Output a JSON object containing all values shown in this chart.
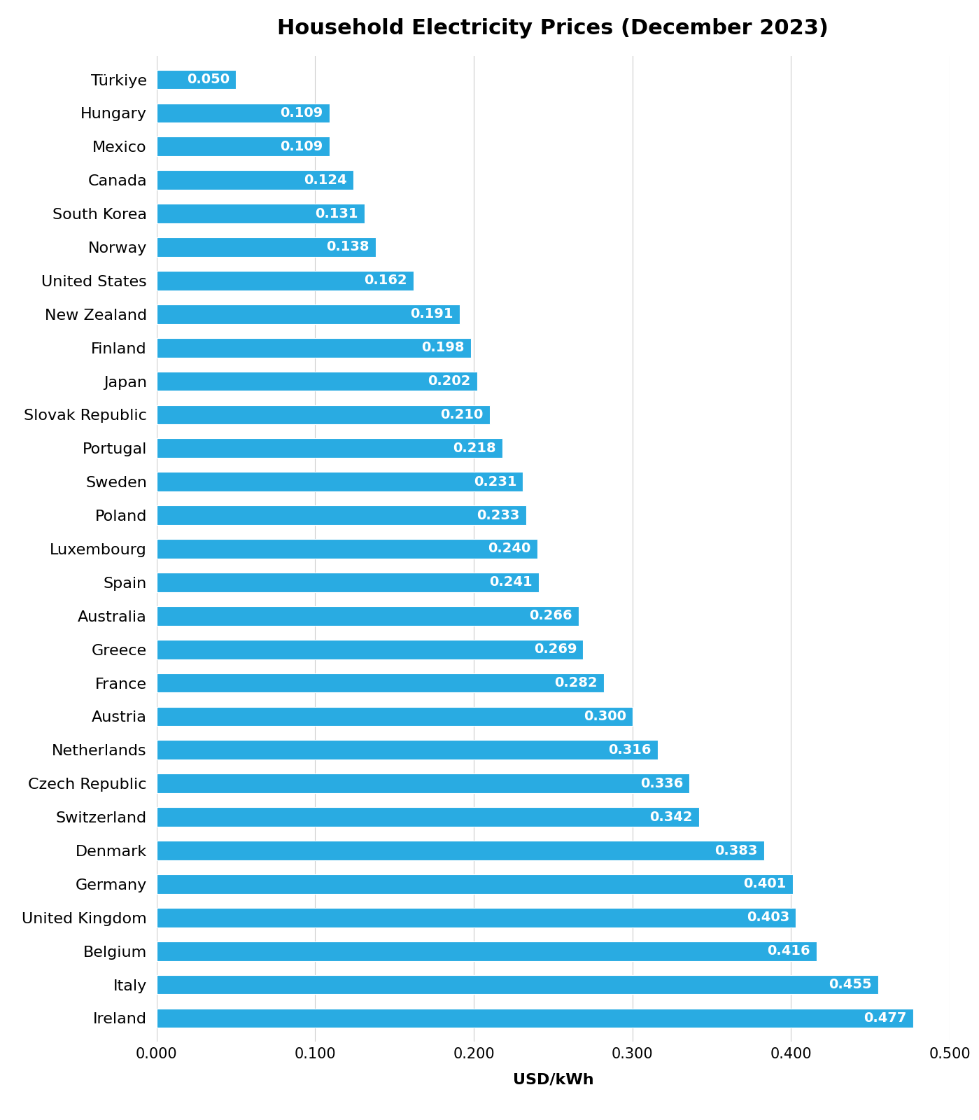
{
  "title": "Household Electricity Prices (December 2023)",
  "xlabel": "USD/kWh",
  "countries": [
    "Türkiye",
    "Hungary",
    "Mexico",
    "Canada",
    "South Korea",
    "Norway",
    "United States",
    "New Zealand",
    "Finland",
    "Japan",
    "Slovak Republic",
    "Portugal",
    "Sweden",
    "Poland",
    "Luxembourg",
    "Spain",
    "Australia",
    "Greece",
    "France",
    "Austria",
    "Netherlands",
    "Czech Republic",
    "Switzerland",
    "Denmark",
    "Germany",
    "United Kingdom",
    "Belgium",
    "Italy",
    "Ireland"
  ],
  "values": [
    0.05,
    0.109,
    0.109,
    0.124,
    0.131,
    0.138,
    0.162,
    0.191,
    0.198,
    0.202,
    0.21,
    0.218,
    0.231,
    0.233,
    0.24,
    0.241,
    0.266,
    0.269,
    0.282,
    0.3,
    0.316,
    0.336,
    0.342,
    0.383,
    0.401,
    0.403,
    0.416,
    0.455,
    0.477
  ],
  "bar_color": "#29ABE2",
  "bar_label_color": "#FFFFFF",
  "background_color": "#FFFFFF",
  "xlim": [
    0,
    0.5
  ],
  "xticks": [
    0.0,
    0.1,
    0.2,
    0.3,
    0.4,
    0.5
  ],
  "xtick_labels": [
    "0.000",
    "0.100",
    "0.200",
    "0.300",
    "0.400",
    "0.500"
  ],
  "title_fontsize": 22,
  "label_fontsize": 16,
  "tick_fontsize": 15,
  "bar_label_fontsize": 14,
  "bar_height": 0.58
}
